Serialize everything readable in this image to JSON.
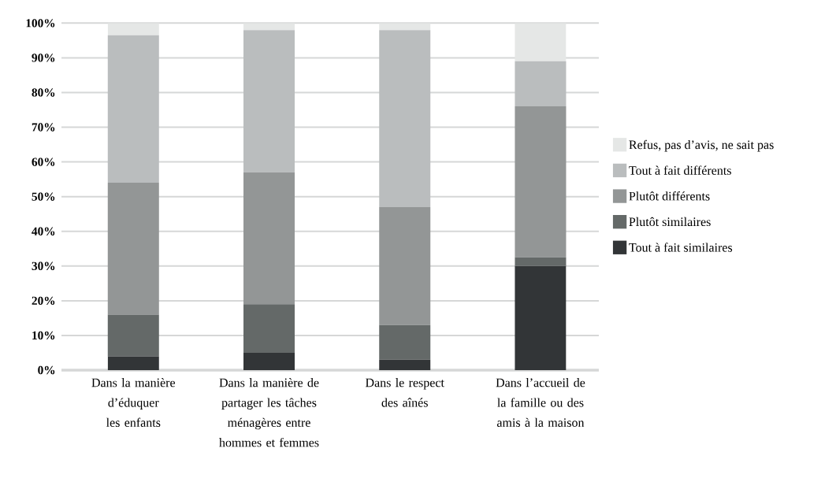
{
  "chart_data": {
    "type": "bar",
    "stacked": true,
    "categories": [
      "Dans la manière d’éduquer les enfants",
      "Dans la manière de partager les tâches ménagères entre hommes et femmes",
      "Dans le respect des aînés",
      "Dans l’accueil de la famille ou des amis à la maison"
    ],
    "series": [
      {
        "name": "Tout à fait similaires",
        "color": "#323537",
        "values": [
          4,
          5,
          3,
          30
        ]
      },
      {
        "name": "Plutôt similaires",
        "color": "#646968",
        "values": [
          12,
          14,
          10,
          2.5
        ]
      },
      {
        "name": "Plutôt différents",
        "color": "#939696",
        "values": [
          38,
          38,
          34,
          43.5
        ]
      },
      {
        "name": "Tout à fait différents",
        "color": "#babdbe",
        "values": [
          42.5,
          41,
          51,
          13
        ]
      },
      {
        "name": "Refus, pas d’avis, ne sait pas",
        "color": "#e5e7e6",
        "values": [
          3.5,
          2,
          2,
          11
        ]
      }
    ],
    "ylim": [
      0,
      100
    ],
    "yticks": [
      {
        "value": 0,
        "label": "0%"
      },
      {
        "value": 10,
        "label": "10%"
      },
      {
        "value": 20,
        "label": "20%"
      },
      {
        "value": 30,
        "label": "30%"
      },
      {
        "value": 40,
        "label": "40%"
      },
      {
        "value": 50,
        "label": "50%"
      },
      {
        "value": 60,
        "label": "60%"
      },
      {
        "value": 70,
        "label": "70%"
      },
      {
        "value": 80,
        "label": "80%"
      },
      {
        "value": 90,
        "label": "90%"
      },
      {
        "value": 100,
        "label": "100%"
      }
    ],
    "grid": "y",
    "legend": "right"
  }
}
